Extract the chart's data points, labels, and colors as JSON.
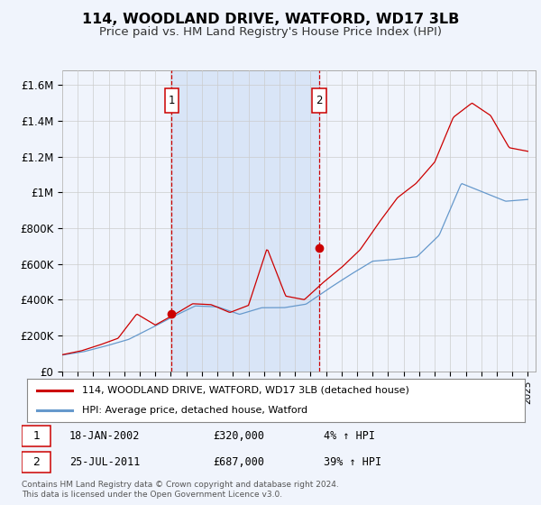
{
  "title": "114, WOODLAND DRIVE, WATFORD, WD17 3LB",
  "subtitle": "Price paid vs. HM Land Registry's House Price Index (HPI)",
  "title_fontsize": 11.5,
  "subtitle_fontsize": 9.5,
  "bg_color": "#f0f4fc",
  "plot_bg_color": "#f0f4fc",
  "grid_color": "#cccccc",
  "ylabel_ticks": [
    "£0",
    "£200K",
    "£400K",
    "£600K",
    "£800K",
    "£1M",
    "£1.2M",
    "£1.4M",
    "£1.6M"
  ],
  "ytick_values": [
    0,
    200000,
    400000,
    600000,
    800000,
    1000000,
    1200000,
    1400000,
    1600000
  ],
  "ylim": [
    0,
    1680000
  ],
  "xlim_start": 1995.0,
  "xlim_end": 2025.5,
  "xtick_years": [
    1995,
    1996,
    1997,
    1998,
    1999,
    2000,
    2001,
    2002,
    2003,
    2004,
    2005,
    2006,
    2007,
    2008,
    2009,
    2010,
    2011,
    2012,
    2013,
    2014,
    2015,
    2016,
    2017,
    2018,
    2019,
    2020,
    2021,
    2022,
    2023,
    2024,
    2025
  ],
  "red_line_color": "#cc0000",
  "blue_line_color": "#6699cc",
  "marker_color": "#cc0000",
  "vline_color": "#cc0000",
  "shade_color": "#d0dff5",
  "sale1_x": 2002.05,
  "sale1_y": 320000,
  "sale2_x": 2011.57,
  "sale2_y": 687000,
  "legend_label_red": "114, WOODLAND DRIVE, WATFORD, WD17 3LB (detached house)",
  "legend_label_blue": "HPI: Average price, detached house, Watford",
  "table_rows": [
    {
      "num": "1",
      "date": "18-JAN-2002",
      "price": "£320,000",
      "hpi": "4% ↑ HPI"
    },
    {
      "num": "2",
      "date": "25-JUL-2011",
      "price": "£687,000",
      "hpi": "39% ↑ HPI"
    }
  ],
  "footer": "Contains HM Land Registry data © Crown copyright and database right 2024.\nThis data is licensed under the Open Government Licence v3.0."
}
